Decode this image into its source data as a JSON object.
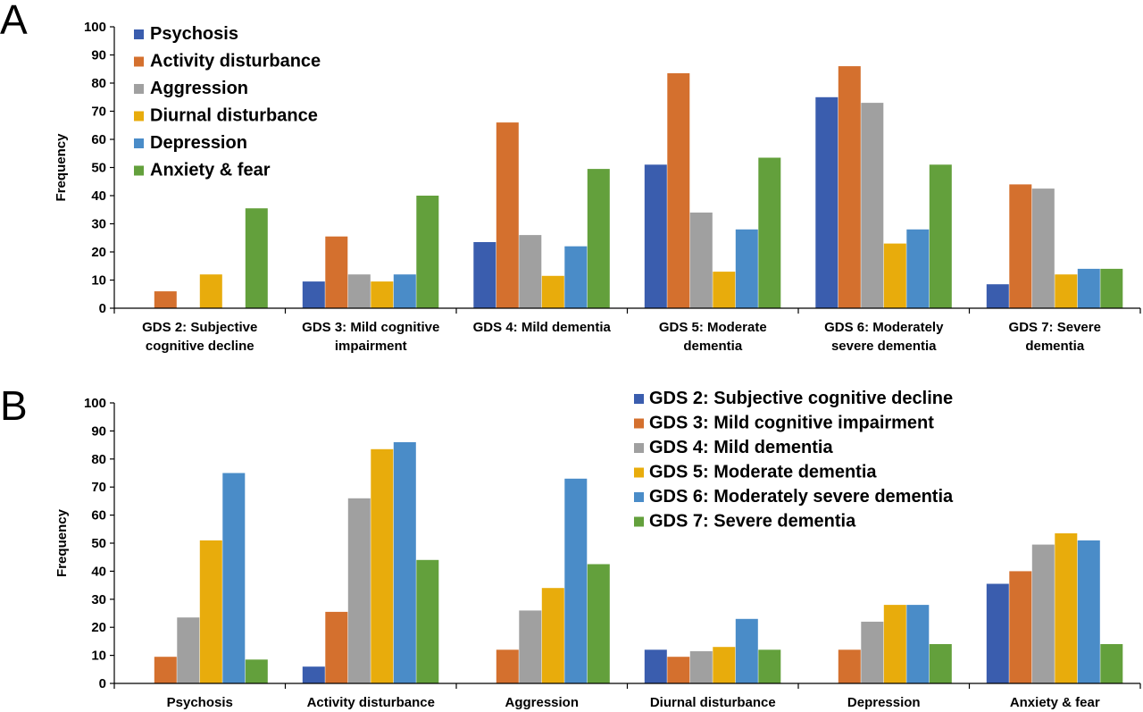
{
  "chart_data": [
    {
      "panel": "A",
      "type": "bar",
      "xlabel": "",
      "ylabel": "Frequency",
      "ylim": [
        0,
        100
      ],
      "yticks": [
        0,
        10,
        20,
        30,
        40,
        50,
        60,
        70,
        80,
        90,
        100
      ],
      "grid": false,
      "legend_position": "top-left",
      "categories": [
        [
          "GDS 2: Subjective",
          "cognitive decline"
        ],
        [
          "GDS 3: Mild cognitive",
          "impairment"
        ],
        [
          "GDS 4: Mild dementia"
        ],
        [
          "GDS 5: Moderate",
          "dementia"
        ],
        [
          "GDS 6: Moderately",
          "severe dementia"
        ],
        [
          "GDS 7: Severe",
          "dementia"
        ]
      ],
      "series": [
        {
          "name": "Psychosis",
          "color": "#3A5DAE",
          "values": [
            0,
            9.5,
            23.5,
            51,
            75,
            8.5
          ]
        },
        {
          "name": "Activity disturbance",
          "color": "#D4702E",
          "values": [
            6,
            25.5,
            66,
            83.5,
            86,
            44
          ]
        },
        {
          "name": "Aggression",
          "color": "#A0A0A0",
          "values": [
            0,
            12,
            26,
            34,
            73,
            42.5
          ]
        },
        {
          "name": "Diurnal disturbance",
          "color": "#E8AC0C",
          "values": [
            12,
            9.5,
            11.5,
            13,
            23,
            12
          ]
        },
        {
          "name": "Depression",
          "color": "#4A8CC8",
          "values": [
            0,
            12,
            22,
            28,
            28,
            14
          ]
        },
        {
          "name": "Anxiety & fear",
          "color": "#63A03C",
          "values": [
            35.5,
            40,
            49.5,
            53.5,
            51,
            14
          ]
        }
      ]
    },
    {
      "panel": "B",
      "type": "bar",
      "xlabel": "",
      "ylabel": "Frequency",
      "ylim": [
        0,
        100
      ],
      "yticks": [
        0,
        10,
        20,
        30,
        40,
        50,
        60,
        70,
        80,
        90,
        100
      ],
      "grid": false,
      "legend_position": "top-right",
      "categories": [
        [
          "Psychosis"
        ],
        [
          "Activity disturbance"
        ],
        [
          "Aggression"
        ],
        [
          "Diurnal disturbance"
        ],
        [
          "Depression"
        ],
        [
          "Anxiety & fear"
        ]
      ],
      "series": [
        {
          "name": "GDS 2: Subjective cognitive decline",
          "color": "#3A5DAE",
          "values": [
            0,
            6,
            0,
            12,
            0,
            35.5
          ]
        },
        {
          "name": "GDS 3: Mild cognitive impairment",
          "color": "#D4702E",
          "values": [
            9.5,
            25.5,
            12,
            9.5,
            12,
            40
          ]
        },
        {
          "name": "GDS 4: Mild dementia",
          "color": "#A0A0A0",
          "values": [
            23.5,
            66,
            26,
            11.5,
            22,
            49.5
          ]
        },
        {
          "name": "GDS 5: Moderate dementia",
          "color": "#E8AC0C",
          "values": [
            51,
            83.5,
            34,
            13,
            28,
            53.5
          ]
        },
        {
          "name": "GDS 6: Moderately severe dementia",
          "color": "#4A8CC8",
          "values": [
            75,
            86,
            73,
            23,
            28,
            51
          ]
        },
        {
          "name": "GDS 7: Severe dementia",
          "color": "#63A03C",
          "values": [
            8.5,
            44,
            42.5,
            12,
            14,
            14
          ]
        }
      ]
    }
  ]
}
